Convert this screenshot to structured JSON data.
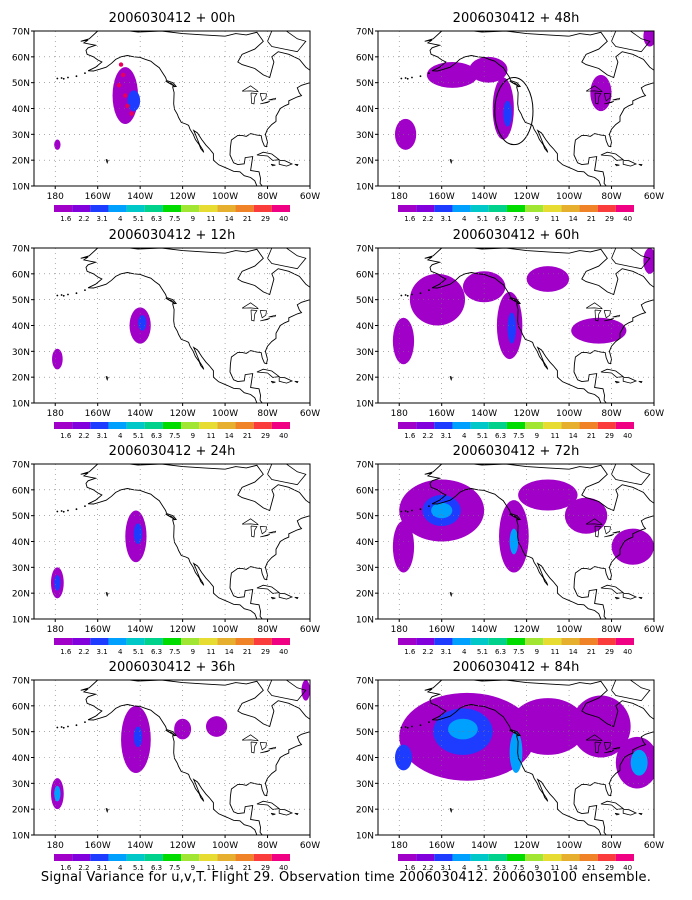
{
  "figure": {
    "caption": "Signal Variance for u,v,T. Flight 29. Observation time 2006030412. 2006030100 ensemble."
  },
  "axes": {
    "y_ticks": [
      "70N",
      "60N",
      "50N",
      "40N",
      "30N",
      "20N",
      "10N"
    ],
    "x_ticks": [
      "180",
      "160W",
      "140W",
      "120W",
      "100W",
      "80W",
      "60W"
    ]
  },
  "colorbar": {
    "labels": [
      "1.6",
      "2.2",
      "3.1",
      "4",
      "5.1",
      "6.3",
      "7.5",
      "9",
      "11",
      "14",
      "21",
      "29",
      "40"
    ],
    "colors": [
      "#a000c8",
      "#8200dc",
      "#1e3cff",
      "#00a0ff",
      "#00c8c8",
      "#00d28c",
      "#00dc00",
      "#a0e632",
      "#e6dc32",
      "#e6af2d",
      "#f08228",
      "#fa3c3c",
      "#f00082"
    ]
  },
  "panels": [
    {
      "title": "2006030412 + 00h"
    },
    {
      "title": "2006030412 + 48h"
    },
    {
      "title": "2006030412 + 12h"
    },
    {
      "title": "2006030412 + 60h"
    },
    {
      "title": "2006030412 + 24h"
    },
    {
      "title": "2006030412 + 72h"
    },
    {
      "title": "2006030412 + 36h"
    },
    {
      "title": "2006030412 + 84h"
    }
  ],
  "fields": [
    {
      "panel": 0,
      "blobs": [
        {
          "lon": -147,
          "lat": 45,
          "rlon": 6,
          "rlat": 11,
          "level": 0
        },
        {
          "lon": -143,
          "lat": 43,
          "rlon": 3,
          "rlat": 4,
          "level": 2
        },
        {
          "lon": -179,
          "lat": 26,
          "rlon": 1.5,
          "rlat": 2,
          "level": 0
        }
      ],
      "dots": [
        {
          "lon": -149,
          "lat": 57
        },
        {
          "lon": -148,
          "lat": 53
        },
        {
          "lon": -150,
          "lat": 49
        },
        {
          "lon": -147,
          "lat": 45
        },
        {
          "lon": -146,
          "lat": 41
        },
        {
          "lon": -144,
          "lat": 38
        }
      ]
    },
    {
      "panel": 1,
      "blobs": [
        {
          "lon": -155,
          "lat": 53,
          "rlon": 12,
          "rlat": 5,
          "level": 0
        },
        {
          "lon": -138,
          "lat": 55,
          "rlon": 9,
          "rlat": 5,
          "level": 0
        },
        {
          "lon": -131,
          "lat": 40,
          "rlon": 5,
          "rlat": 12,
          "level": 0
        },
        {
          "lon": -129,
          "lat": 38,
          "rlon": 2,
          "rlat": 5,
          "level": 2
        },
        {
          "lon": -85,
          "lat": 46,
          "rlon": 5,
          "rlat": 7,
          "level": 0
        },
        {
          "lon": -177,
          "lat": 30,
          "rlon": 5,
          "rlat": 6,
          "level": 0
        },
        {
          "lon": -62,
          "lat": 68,
          "rlon": 3,
          "rlat": 4,
          "level": 0
        }
      ],
      "ring": {
        "lon": -126,
        "lat": 39,
        "rlon": 9,
        "rlat": 13
      }
    },
    {
      "panel": 2,
      "blobs": [
        {
          "lon": -140,
          "lat": 40,
          "rlon": 5,
          "rlat": 7,
          "level": 0
        },
        {
          "lon": -139,
          "lat": 41,
          "rlon": 2,
          "rlat": 3,
          "level": 2
        },
        {
          "lon": -179,
          "lat": 27,
          "rlon": 2.5,
          "rlat": 4,
          "level": 0
        }
      ]
    },
    {
      "panel": 3,
      "blobs": [
        {
          "lon": -162,
          "lat": 50,
          "rlon": 13,
          "rlat": 10,
          "level": 0
        },
        {
          "lon": -140,
          "lat": 55,
          "rlon": 10,
          "rlat": 6,
          "level": 0
        },
        {
          "lon": -128,
          "lat": 40,
          "rlon": 6,
          "rlat": 13,
          "level": 0
        },
        {
          "lon": -127,
          "lat": 39,
          "rlon": 2,
          "rlat": 6,
          "level": 2
        },
        {
          "lon": -110,
          "lat": 58,
          "rlon": 10,
          "rlat": 5,
          "level": 0
        },
        {
          "lon": -86,
          "lat": 38,
          "rlon": 13,
          "rlat": 5,
          "level": 0
        },
        {
          "lon": -178,
          "lat": 34,
          "rlon": 5,
          "rlat": 9,
          "level": 0
        },
        {
          "lon": -62,
          "lat": 65,
          "rlon": 3,
          "rlat": 5,
          "level": 0
        }
      ]
    },
    {
      "panel": 4,
      "blobs": [
        {
          "lon": -142,
          "lat": 42,
          "rlon": 5,
          "rlat": 10,
          "level": 0
        },
        {
          "lon": -141,
          "lat": 43,
          "rlon": 2,
          "rlat": 4,
          "level": 2
        },
        {
          "lon": -179,
          "lat": 24,
          "rlon": 3,
          "rlat": 6,
          "level": 0
        },
        {
          "lon": -179,
          "lat": 24,
          "rlon": 1.5,
          "rlat": 3,
          "level": 2
        }
      ]
    },
    {
      "panel": 5,
      "blobs": [
        {
          "lon": -160,
          "lat": 52,
          "rlon": 20,
          "rlat": 12,
          "level": 0
        },
        {
          "lon": -160,
          "lat": 52,
          "rlon": 9,
          "rlat": 6,
          "level": 2
        },
        {
          "lon": -160,
          "lat": 52,
          "rlon": 5,
          "rlat": 3,
          "level": 3
        },
        {
          "lon": -126,
          "lat": 42,
          "rlon": 7,
          "rlat": 14,
          "level": 0
        },
        {
          "lon": -126,
          "lat": 40,
          "rlon": 2,
          "rlat": 5,
          "level": 3
        },
        {
          "lon": -110,
          "lat": 58,
          "rlon": 14,
          "rlat": 6,
          "level": 0
        },
        {
          "lon": -92,
          "lat": 50,
          "rlon": 10,
          "rlat": 7,
          "level": 0
        },
        {
          "lon": -70,
          "lat": 38,
          "rlon": 10,
          "rlat": 7,
          "level": 0
        },
        {
          "lon": -178,
          "lat": 38,
          "rlon": 5,
          "rlat": 10,
          "level": 0
        }
      ]
    },
    {
      "panel": 6,
      "blobs": [
        {
          "lon": -142,
          "lat": 47,
          "rlon": 7,
          "rlat": 13,
          "level": 0
        },
        {
          "lon": -141,
          "lat": 48,
          "rlon": 2,
          "rlat": 4,
          "level": 2
        },
        {
          "lon": -120,
          "lat": 51,
          "rlon": 4,
          "rlat": 4,
          "level": 0
        },
        {
          "lon": -104,
          "lat": 52,
          "rlon": 5,
          "rlat": 4,
          "level": 0
        },
        {
          "lon": -179,
          "lat": 26,
          "rlon": 3,
          "rlat": 6,
          "level": 0
        },
        {
          "lon": -179,
          "lat": 26,
          "rlon": 1.5,
          "rlat": 3,
          "level": 3
        },
        {
          "lon": -62,
          "lat": 66,
          "rlon": 2,
          "rlat": 4,
          "level": 0
        }
      ]
    },
    {
      "panel": 7,
      "blobs": [
        {
          "lon": -148,
          "lat": 48,
          "rlon": 32,
          "rlat": 17,
          "level": 0
        },
        {
          "lon": -150,
          "lat": 50,
          "rlon": 14,
          "rlat": 9,
          "level": 2
        },
        {
          "lon": -150,
          "lat": 51,
          "rlon": 7,
          "rlat": 4,
          "level": 3
        },
        {
          "lon": -110,
          "lat": 52,
          "rlon": 18,
          "rlat": 11,
          "level": 0
        },
        {
          "lon": -85,
          "lat": 52,
          "rlon": 14,
          "rlat": 12,
          "level": 0
        },
        {
          "lon": -68,
          "lat": 38,
          "rlon": 10,
          "rlat": 10,
          "level": 0
        },
        {
          "lon": -67,
          "lat": 38,
          "rlon": 4,
          "rlat": 5,
          "level": 3
        },
        {
          "lon": -125,
          "lat": 42,
          "rlon": 3,
          "rlat": 8,
          "level": 3
        },
        {
          "lon": -178,
          "lat": 40,
          "rlon": 4,
          "rlat": 5,
          "level": 2
        }
      ]
    }
  ]
}
